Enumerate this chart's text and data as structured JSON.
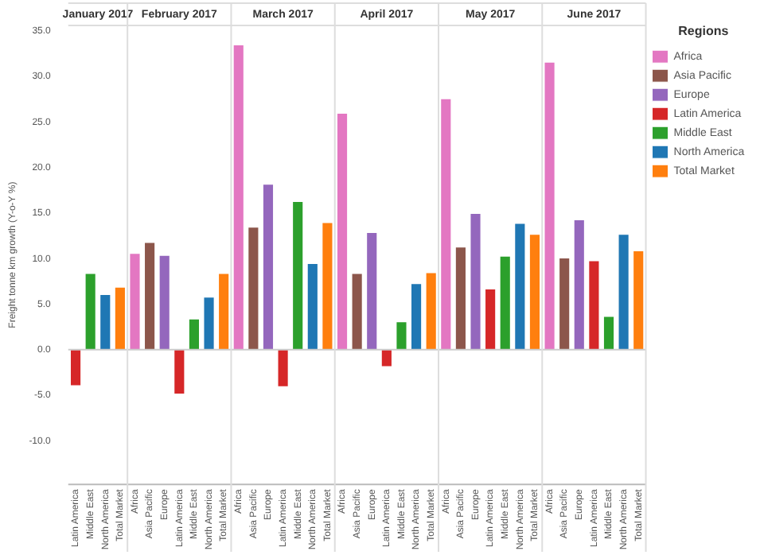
{
  "chart_data": {
    "type": "bar",
    "ylabel": "Freight tonne km growth (Y-o-Y %)",
    "legend_title": "Regions",
    "legend": "right",
    "grid": false,
    "categories": [
      "Latin America",
      "Middle East",
      "North America",
      "Total Market",
      "Africa",
      "Asia Pacific",
      "Europe",
      "Latin America",
      "Middle East",
      "North America",
      "Total Market",
      "Africa",
      "Asia Pacific",
      "Europe",
      "Latin America",
      "Middle East",
      "North America",
      "Total Market",
      "Africa",
      "Asia Pacific",
      "Europe",
      "Latin America",
      "Middle East",
      "North America",
      "Total Market",
      "Africa",
      "Asia Pacific",
      "Europe",
      "Latin America",
      "Middle East",
      "North America",
      "Total Market",
      "Africa",
      "Asia Pacific",
      "Europe",
      "Latin America",
      "Middle East",
      "North America",
      "Total Market"
    ],
    "series": [
      {
        "name": "Africa",
        "color": "#e377c2",
        "values": [
          null,
          null,
          null,
          null,
          10.6,
          null,
          null,
          null,
          null,
          null,
          null,
          33.5,
          null,
          null,
          null,
          null,
          null,
          null,
          26.0,
          null,
          null,
          null,
          null,
          null,
          null,
          27.6,
          null,
          null,
          null,
          null,
          null,
          null,
          31.6,
          null,
          null,
          null,
          null,
          null,
          null
        ]
      },
      {
        "name": "Asia Pacific",
        "color": "#8c564b",
        "values": [
          null,
          null,
          null,
          null,
          null,
          11.8,
          null,
          null,
          null,
          null,
          null,
          null,
          13.5,
          null,
          null,
          null,
          null,
          null,
          null,
          8.4,
          null,
          null,
          null,
          null,
          null,
          null,
          11.3,
          null,
          null,
          null,
          null,
          null,
          null,
          10.1,
          null,
          null,
          null,
          null,
          null
        ]
      },
      {
        "name": "Europe",
        "color": "#9467bd",
        "values": [
          null,
          null,
          null,
          null,
          null,
          null,
          10.4,
          null,
          null,
          null,
          null,
          null,
          null,
          18.2,
          null,
          null,
          null,
          null,
          null,
          null,
          12.9,
          null,
          null,
          null,
          null,
          null,
          null,
          15.0,
          null,
          null,
          null,
          null,
          null,
          null,
          14.3,
          null,
          null,
          null,
          null
        ]
      },
      {
        "name": "Latin America",
        "color": "#d62728",
        "values": [
          -4.0,
          null,
          null,
          null,
          null,
          null,
          null,
          -4.9,
          null,
          null,
          null,
          null,
          null,
          null,
          -4.1,
          null,
          null,
          null,
          null,
          null,
          null,
          -1.9,
          null,
          null,
          null,
          null,
          null,
          null,
          6.7,
          null,
          null,
          null,
          null,
          null,
          null,
          9.8,
          null,
          null,
          null
        ]
      },
      {
        "name": "Middle East",
        "color": "#2ca02c",
        "values": [
          null,
          8.4,
          null,
          null,
          null,
          null,
          null,
          null,
          3.4,
          null,
          null,
          null,
          null,
          null,
          null,
          16.3,
          null,
          null,
          null,
          null,
          null,
          null,
          3.1,
          null,
          null,
          null,
          null,
          null,
          null,
          10.3,
          null,
          null,
          null,
          null,
          null,
          null,
          3.7,
          null,
          null
        ]
      },
      {
        "name": "North America",
        "color": "#1f77b4",
        "values": [
          null,
          null,
          6.1,
          null,
          null,
          null,
          null,
          null,
          null,
          5.8,
          null,
          null,
          null,
          null,
          null,
          null,
          9.5,
          null,
          null,
          null,
          null,
          null,
          null,
          7.3,
          null,
          null,
          null,
          null,
          null,
          null,
          13.9,
          null,
          null,
          null,
          null,
          null,
          null,
          12.7,
          null
        ]
      },
      {
        "name": "Total Market",
        "color": "#ff7f0e",
        "values": [
          null,
          null,
          null,
          6.9,
          null,
          null,
          null,
          null,
          null,
          null,
          8.4,
          null,
          null,
          null,
          null,
          null,
          null,
          14.0,
          null,
          null,
          null,
          null,
          null,
          null,
          8.5,
          null,
          null,
          null,
          null,
          null,
          null,
          12.7,
          null,
          null,
          null,
          null,
          null,
          null,
          10.9
        ]
      }
    ],
    "ylim": [
      -14.8,
      35.6
    ],
    "yticks": [
      {
        "value": -10,
        "label": "-10.0"
      },
      {
        "value": -5,
        "label": "-5.0"
      },
      {
        "value": 0,
        "label": "0.0"
      },
      {
        "value": 5,
        "label": "5.0"
      },
      {
        "value": 10,
        "label": "10.0"
      },
      {
        "value": 15,
        "label": "15.0"
      },
      {
        "value": 20,
        "label": "20.0"
      },
      {
        "value": 25,
        "label": "25.0"
      },
      {
        "value": 30,
        "label": "30.0"
      },
      {
        "value": 35,
        "label": "35.0"
      }
    ],
    "ref_lines": [
      {
        "axis": "y",
        "value": 0,
        "color": "#cccccc"
      }
    ],
    "annotations": [
      "January 2017",
      "February 2017",
      "March 2017",
      "April 2017",
      "May 2017",
      "June 2017"
    ]
  }
}
